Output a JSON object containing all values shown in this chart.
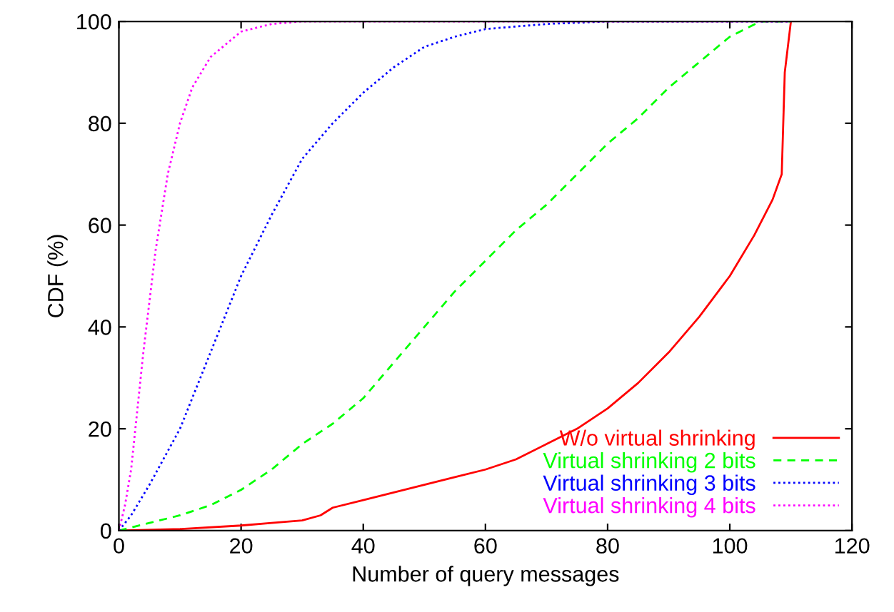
{
  "chart_data": {
    "type": "line",
    "xlabel": "Number of query messages",
    "ylabel": "CDF (%)",
    "xlim": [
      0,
      120
    ],
    "ylim": [
      0,
      100
    ],
    "xticks": [
      0,
      20,
      40,
      60,
      80,
      100,
      120
    ],
    "yticks": [
      0,
      20,
      40,
      60,
      80,
      100
    ],
    "grid": false,
    "legend": "bottom right",
    "series": [
      {
        "name": "W/o virtual shrinking",
        "color": "#ff0000",
        "line_style": "solid",
        "x": [
          0,
          10,
          20,
          25,
          30,
          33,
          35,
          40,
          45,
          50,
          55,
          60,
          65,
          70,
          75,
          80,
          85,
          90,
          95,
          100,
          104,
          107,
          108.5,
          109,
          110
        ],
        "values": [
          0,
          0.3,
          1,
          1.5,
          2,
          3,
          4.5,
          6,
          7.5,
          9,
          10.5,
          12,
          14,
          17,
          20,
          24,
          29,
          35,
          42,
          50,
          58,
          65,
          70,
          90,
          100
        ]
      },
      {
        "name": "Virtual shrinking 2 bits",
        "color": "#00ff00",
        "line_style": "dashed",
        "x": [
          0,
          5,
          10,
          15,
          20,
          25,
          30,
          35,
          40,
          45,
          50,
          55,
          60,
          65,
          70,
          75,
          80,
          85,
          90,
          95,
          100,
          105,
          110
        ],
        "values": [
          0,
          1.5,
          3,
          5,
          8,
          12,
          17,
          21,
          26,
          33,
          40,
          47,
          53,
          59,
          64,
          70,
          76,
          81,
          87,
          92,
          97,
          100,
          100
        ]
      },
      {
        "name": "Virtual shrinking 3 bits",
        "color": "#0000ff",
        "line_style": "dotted",
        "x": [
          0,
          2,
          5,
          10,
          15,
          20,
          25,
          30,
          35,
          40,
          45,
          50,
          55,
          60,
          70,
          80,
          110
        ],
        "values": [
          0,
          3,
          9,
          20,
          35,
          50,
          62,
          73,
          80,
          86,
          91,
          95,
          97,
          98.5,
          99.5,
          100,
          100
        ]
      },
      {
        "name": "Virtual shrinking 4 bits",
        "color": "#ff00ff",
        "line_style": "dotted",
        "x": [
          0,
          1,
          2,
          4,
          6,
          8,
          10,
          12,
          15,
          18,
          20,
          25,
          30,
          110
        ],
        "values": [
          0,
          5,
          12,
          35,
          55,
          70,
          80,
          87,
          93,
          96,
          98,
          99.5,
          100,
          100
        ]
      }
    ]
  }
}
